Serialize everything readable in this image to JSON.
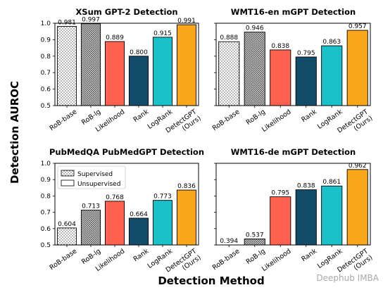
{
  "figure": {
    "ylabel": "Detection AUROC",
    "xlabel": "Detection Method",
    "watermark": "Deephub IMBA"
  },
  "legend": {
    "items": [
      {
        "label": "Supervised",
        "pattern": "dots"
      },
      {
        "label": "Unsupervised",
        "pattern": "solid"
      }
    ],
    "location": "upper-left (PubMedQA panel)"
  },
  "colors": {
    "supervised": "#ffffff",
    "likelihood": "#ff6150",
    "rank": "#134b6a",
    "logrank": "#1ac1c9",
    "detectgpt": "#fba71b"
  },
  "chart_data": [
    {
      "type": "bar",
      "title": "XSum GPT-2 Detection",
      "categories": [
        "RoB-base",
        "RoB-lg",
        "Likelihood",
        "Rank",
        "LogRank",
        "DetectGPT\n(Ours)"
      ],
      "values": [
        0.981,
        0.997,
        0.889,
        0.8,
        0.915,
        0.991
      ],
      "value_labels": [
        "0.981",
        "0.997",
        "0.889",
        "0.800",
        "0.915",
        "0.991"
      ],
      "ylim": [
        0.5,
        1.0
      ],
      "yticks": [
        "0.5",
        "0.6",
        "0.7",
        "0.8",
        "0.9",
        "1.0"
      ],
      "show_yticks": true
    },
    {
      "type": "bar",
      "title": "WMT16-en mGPT Detection",
      "categories": [
        "RoB-base",
        "RoB-lg",
        "Likelihood",
        "Rank",
        "LogRank",
        "DetectGPT\n(Ours)"
      ],
      "values": [
        0.888,
        0.946,
        0.838,
        0.795,
        0.863,
        0.957
      ],
      "value_labels": [
        "0.888",
        "0.946",
        "0.838",
        "0.795",
        "0.863",
        "0.957"
      ],
      "ylim": [
        0.5,
        1.0
      ],
      "yticks": [
        "0.5",
        "0.6",
        "0.7",
        "0.8",
        "0.9",
        "1.0"
      ],
      "show_yticks": false
    },
    {
      "type": "bar",
      "title": "PubMedQA PubMedGPT Detection",
      "categories": [
        "RoB-base",
        "RoB-lg",
        "Likelihood",
        "Rank",
        "LogRank",
        "DetectGPT\n(Ours)"
      ],
      "values": [
        0.604,
        0.713,
        0.768,
        0.664,
        0.773,
        0.836
      ],
      "value_labels": [
        "0.604",
        "0.713",
        "0.768",
        "0.664",
        "0.773",
        "0.836"
      ],
      "ylim": [
        0.5,
        1.0
      ],
      "yticks": [
        "0.5",
        "0.6",
        "0.7",
        "0.8",
        "0.9",
        "1.0"
      ],
      "show_yticks": true,
      "legend": true
    },
    {
      "type": "bar",
      "title": "WMT16-de mGPT Detection",
      "categories": [
        "RoB-base",
        "RoB-lg",
        "Likelihood",
        "Rank",
        "LogRank",
        "DetectGPT\n(Ours)"
      ],
      "values": [
        0.394,
        0.537,
        0.795,
        0.838,
        0.861,
        0.962
      ],
      "value_labels": [
        "0.394",
        "0.537",
        "0.795",
        "0.838",
        "0.861",
        "0.962"
      ],
      "ylim": [
        0.5,
        1.0
      ],
      "yticks": [
        "0.5",
        "0.6",
        "0.7",
        "0.8",
        "0.9",
        "1.0"
      ],
      "show_yticks": false
    }
  ]
}
